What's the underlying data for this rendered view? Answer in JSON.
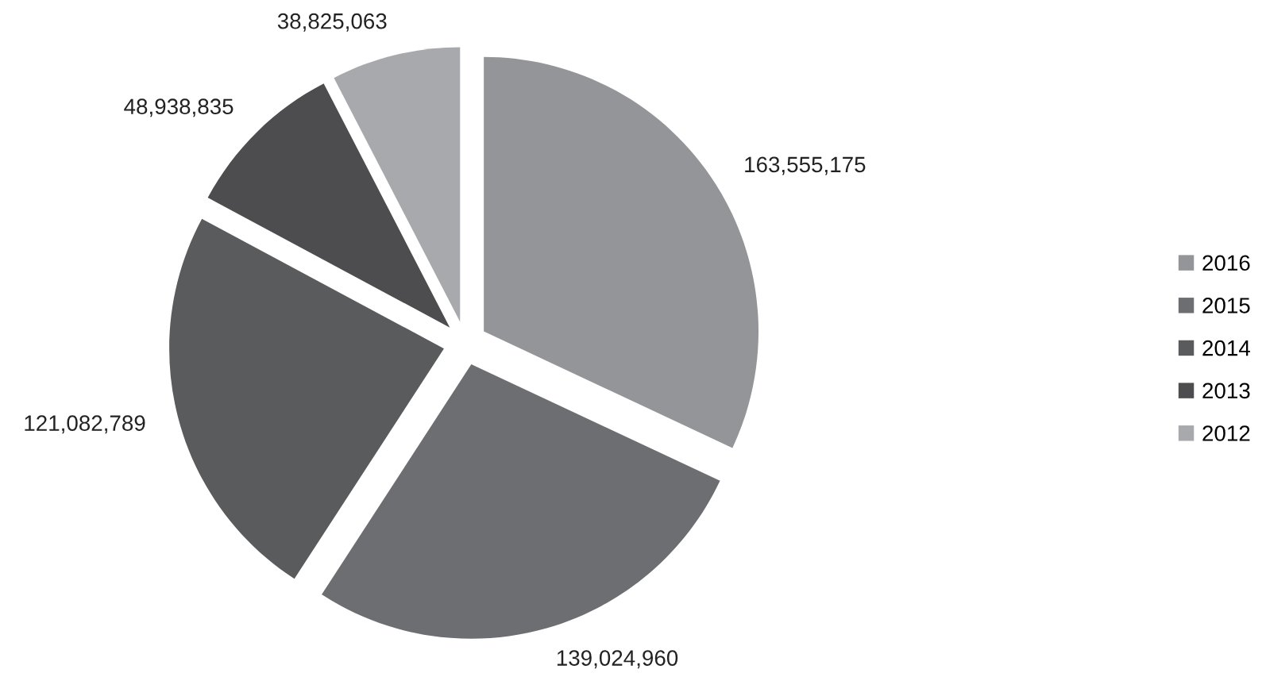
{
  "chart_data": {
    "type": "pie",
    "categories": [
      "2016",
      "2015",
      "2014",
      "2013",
      "2012"
    ],
    "values": [
      163555175,
      139024960,
      121082789,
      48938835,
      38825063
    ],
    "colors": [
      "#939598",
      "#6d6e71",
      "#5a5b5d",
      "#4d4d4f",
      "#a7a9ac"
    ],
    "value_labels": [
      "163,555,175",
      "139,024,960",
      "121,082,789",
      "48,938,835",
      "38,825,063"
    ],
    "legend": "right"
  }
}
